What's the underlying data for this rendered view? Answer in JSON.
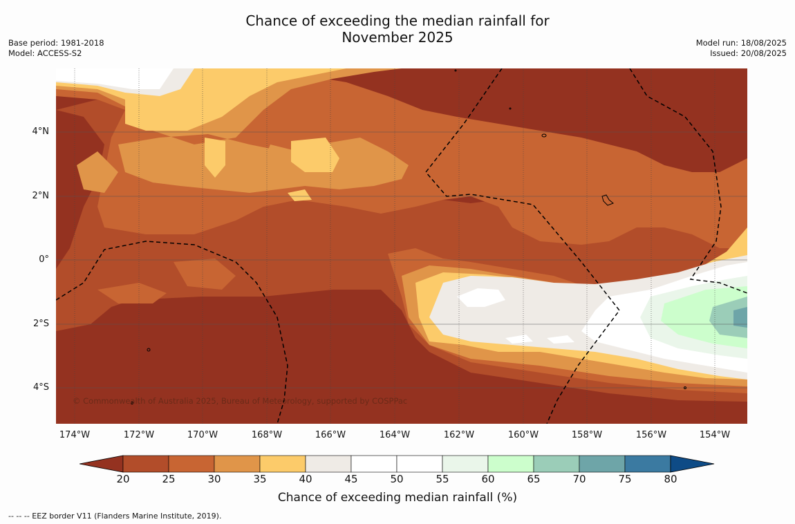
{
  "title_line1": "Chance of exceeding the median rainfall for",
  "title_line2": "November 2025",
  "meta_left": [
    "Base period: 1981-2018",
    "Model: ACCESS-S2"
  ],
  "meta_right": [
    "Model run: 18/08/2025",
    "Issued: 20/08/2025"
  ],
  "copyright": "© Commonwealth of Australia 2025, Bureau of Meteorology, supported by COSPPac",
  "lat_labels": [
    "4°N",
    "2°N",
    "0°",
    "2°S",
    "4°S"
  ],
  "lon_labels": [
    "174°W",
    "172°W",
    "170°W",
    "168°W",
    "166°W",
    "164°W",
    "162°W",
    "160°W",
    "158°W",
    "156°W",
    "154°W"
  ],
  "colorbar": {
    "label": "Chance of exceeding median rainfall (%)",
    "ticks": [
      "20",
      "25",
      "30",
      "35",
      "40",
      "45",
      "50",
      "55",
      "60",
      "65",
      "70",
      "75",
      "80"
    ],
    "colors": [
      "#943220",
      "#b24d2a",
      "#c86533",
      "#e09549",
      "#fccb6a",
      "#efebe6",
      "#ffffff",
      "#ffffff",
      "#eaf6ea",
      "#ccfecc",
      "#9bcdb8",
      "#6ea5a8",
      "#3b7aa1",
      "#0e4b86"
    ]
  },
  "footnote": "--  --  -- EEZ border V11 (Flanders Marine Institute, 2019)."
}
